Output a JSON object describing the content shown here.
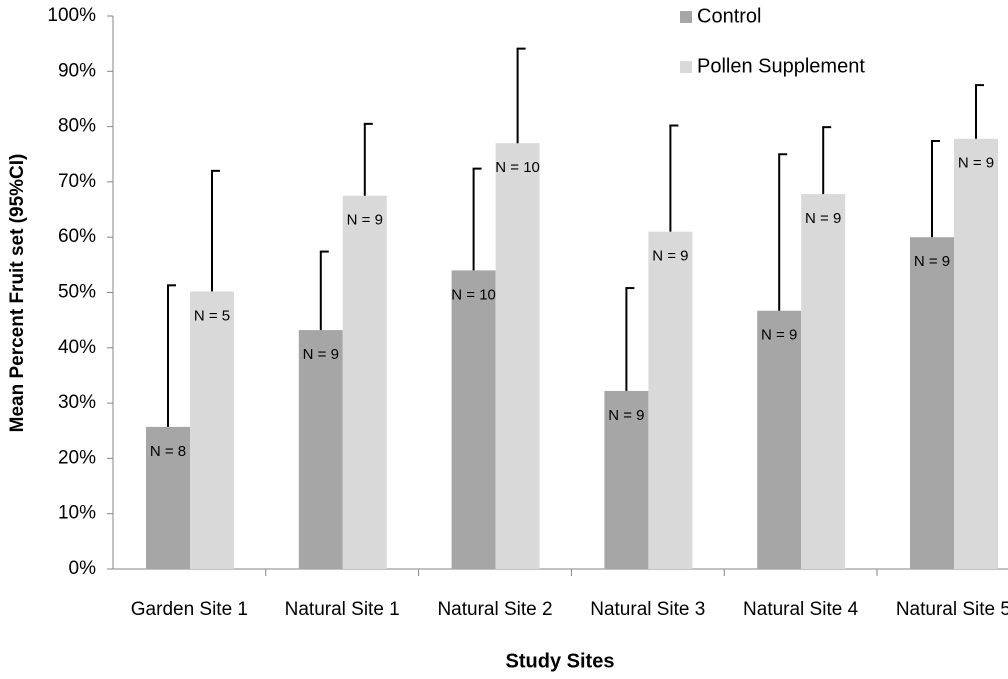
{
  "chart_data": {
    "type": "bar",
    "xlabel": "Study Sites",
    "ylabel": "Mean Percent Fruit set (95%CI)",
    "categories": [
      "Garden Site 1",
      "Natural Site 1",
      "Natural Site 2",
      "Natural Site 3",
      "Natural Site 4",
      "Natural Site 5"
    ],
    "series": [
      {
        "name": "Control",
        "color": "#a6a6a6",
        "values": [
          25.7,
          43.2,
          54,
          32.2,
          46.7,
          60
        ],
        "errors": [
          25.6,
          14.2,
          18.4,
          18.6,
          28.3,
          17.4
        ],
        "labels": [
          "N = 8",
          "N = 9",
          "N = 10",
          "N = 9",
          "N = 9",
          "N = 9"
        ]
      },
      {
        "name": "Pollen Supplement",
        "color": "#d9d9d9",
        "values": [
          50.2,
          67.5,
          77,
          61,
          67.8,
          77.8
        ],
        "errors": [
          21.8,
          13,
          17.1,
          19.2,
          12.1,
          9.7
        ],
        "labels": [
          "N = 5",
          "N = 9",
          "N = 10",
          "N = 9",
          "N = 9",
          "N = 9"
        ]
      }
    ],
    "ylim": [
      0,
      100
    ],
    "yticks": [
      {
        "value": 0,
        "label": "0%"
      },
      {
        "value": 10,
        "label": "10%"
      },
      {
        "value": 20,
        "label": "20%"
      },
      {
        "value": 30,
        "label": "30%"
      },
      {
        "value": 40,
        "label": "40%"
      },
      {
        "value": 50,
        "label": "50%"
      },
      {
        "value": 60,
        "label": "60%"
      },
      {
        "value": 70,
        "label": "70%"
      },
      {
        "value": 80,
        "label": "80%"
      },
      {
        "value": 90,
        "label": "90%"
      },
      {
        "value": 100,
        "label": "100%"
      }
    ],
    "legend": "top-right",
    "grid": false
  }
}
